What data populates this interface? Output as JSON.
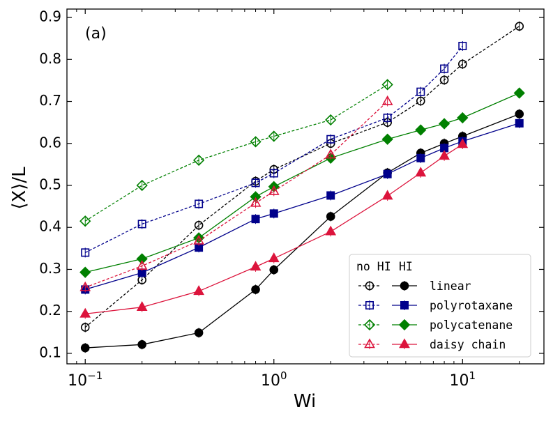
{
  "chart_data": {
    "type": "line",
    "panel_label": "(a)",
    "xlabel": "Wi",
    "ylabel": "⟨X⟩/L",
    "xscale": "log",
    "xlim": [
      0.08,
      27
    ],
    "ylim": [
      0.075,
      0.92
    ],
    "xticks": [
      {
        "value": 0.1,
        "base": "10",
        "exp": "−1"
      },
      {
        "value": 1,
        "base": "10",
        "exp": "0"
      },
      {
        "value": 10,
        "base": "10",
        "exp": "1"
      }
    ],
    "yticks": [
      0.1,
      0.2,
      0.3,
      0.4,
      0.5,
      0.6,
      0.7,
      0.8,
      0.9
    ],
    "ytick_labels": [
      "0.1",
      "0.2",
      "0.3",
      "0.4",
      "0.5",
      "0.6",
      "0.7",
      "0.8",
      "0.9"
    ],
    "legend": {
      "position": "lower right",
      "header_noHI": "no HI",
      "header_HI": "HI",
      "entries": [
        "linear",
        "polyrotaxane",
        "polycatenane",
        "daisy chain"
      ]
    },
    "series": [
      {
        "name": "linear",
        "hi": false,
        "color": "#000000",
        "marker": "circle",
        "filled": false,
        "dashed": true,
        "x": [
          0.1,
          0.2,
          0.4,
          0.8,
          1.0,
          2.0,
          4.0,
          6.0,
          8.0,
          10.0,
          20.0
        ],
        "y": [
          0.162,
          0.275,
          0.405,
          0.51,
          0.538,
          0.6,
          0.65,
          0.701,
          0.751,
          0.789,
          0.879
        ]
      },
      {
        "name": "linear",
        "hi": true,
        "color": "#000000",
        "marker": "circle",
        "filled": true,
        "dashed": false,
        "x": [
          0.1,
          0.2,
          0.4,
          0.8,
          1.0,
          2.0,
          4.0,
          6.0,
          8.0,
          10.0,
          20.0
        ],
        "y": [
          0.113,
          0.121,
          0.149,
          0.252,
          0.299,
          0.426,
          0.53,
          0.577,
          0.6,
          0.617,
          0.67
        ]
      },
      {
        "name": "polyrotaxane",
        "hi": false,
        "color": "#00008b",
        "marker": "square",
        "filled": false,
        "dashed": true,
        "x": [
          0.1,
          0.2,
          0.4,
          0.8,
          1.0,
          2.0,
          4.0,
          6.0,
          8.0,
          10.0
        ],
        "y": [
          0.34,
          0.408,
          0.456,
          0.506,
          0.529,
          0.61,
          0.661,
          0.723,
          0.778,
          0.832
        ]
      },
      {
        "name": "polyrotaxane",
        "hi": true,
        "color": "#00008b",
        "marker": "square",
        "filled": true,
        "dashed": false,
        "x": [
          0.1,
          0.2,
          0.4,
          0.8,
          1.0,
          2.0,
          4.0,
          6.0,
          8.0,
          10.0,
          20.0
        ],
        "y": [
          0.252,
          0.292,
          0.352,
          0.42,
          0.433,
          0.476,
          0.527,
          0.565,
          0.589,
          0.605,
          0.648
        ]
      },
      {
        "name": "polycatenane",
        "hi": false,
        "color": "#008000",
        "marker": "diamond",
        "filled": false,
        "dashed": true,
        "x": [
          0.1,
          0.2,
          0.4,
          0.8,
          1.0,
          2.0,
          4.0
        ],
        "y": [
          0.415,
          0.5,
          0.56,
          0.604,
          0.617,
          0.656,
          0.74
        ]
      },
      {
        "name": "polycatenane",
        "hi": true,
        "color": "#008000",
        "marker": "diamond",
        "filled": true,
        "dashed": false,
        "x": [
          0.1,
          0.2,
          0.4,
          0.8,
          1.0,
          2.0,
          4.0,
          6.0,
          8.0,
          10.0,
          20.0
        ],
        "y": [
          0.293,
          0.325,
          0.375,
          0.473,
          0.497,
          0.565,
          0.61,
          0.632,
          0.647,
          0.661,
          0.72
        ]
      },
      {
        "name": "daisy chain",
        "hi": false,
        "color": "#dc143c",
        "marker": "triangle",
        "filled": false,
        "dashed": true,
        "x": [
          0.1,
          0.2,
          0.4,
          0.8,
          1.0,
          2.0,
          4.0
        ],
        "y": [
          0.257,
          0.308,
          0.368,
          0.458,
          0.486,
          0.573,
          0.7
        ]
      },
      {
        "name": "daisy chain",
        "hi": true,
        "color": "#dc143c",
        "marker": "triangle",
        "filled": true,
        "dashed": false,
        "x": [
          0.1,
          0.2,
          0.4,
          0.8,
          1.0,
          2.0,
          4.0,
          6.0,
          8.0,
          10.0
        ],
        "y": [
          0.194,
          0.21,
          0.248,
          0.306,
          0.326,
          0.39,
          0.475,
          0.53,
          0.57,
          0.598
        ]
      }
    ]
  }
}
